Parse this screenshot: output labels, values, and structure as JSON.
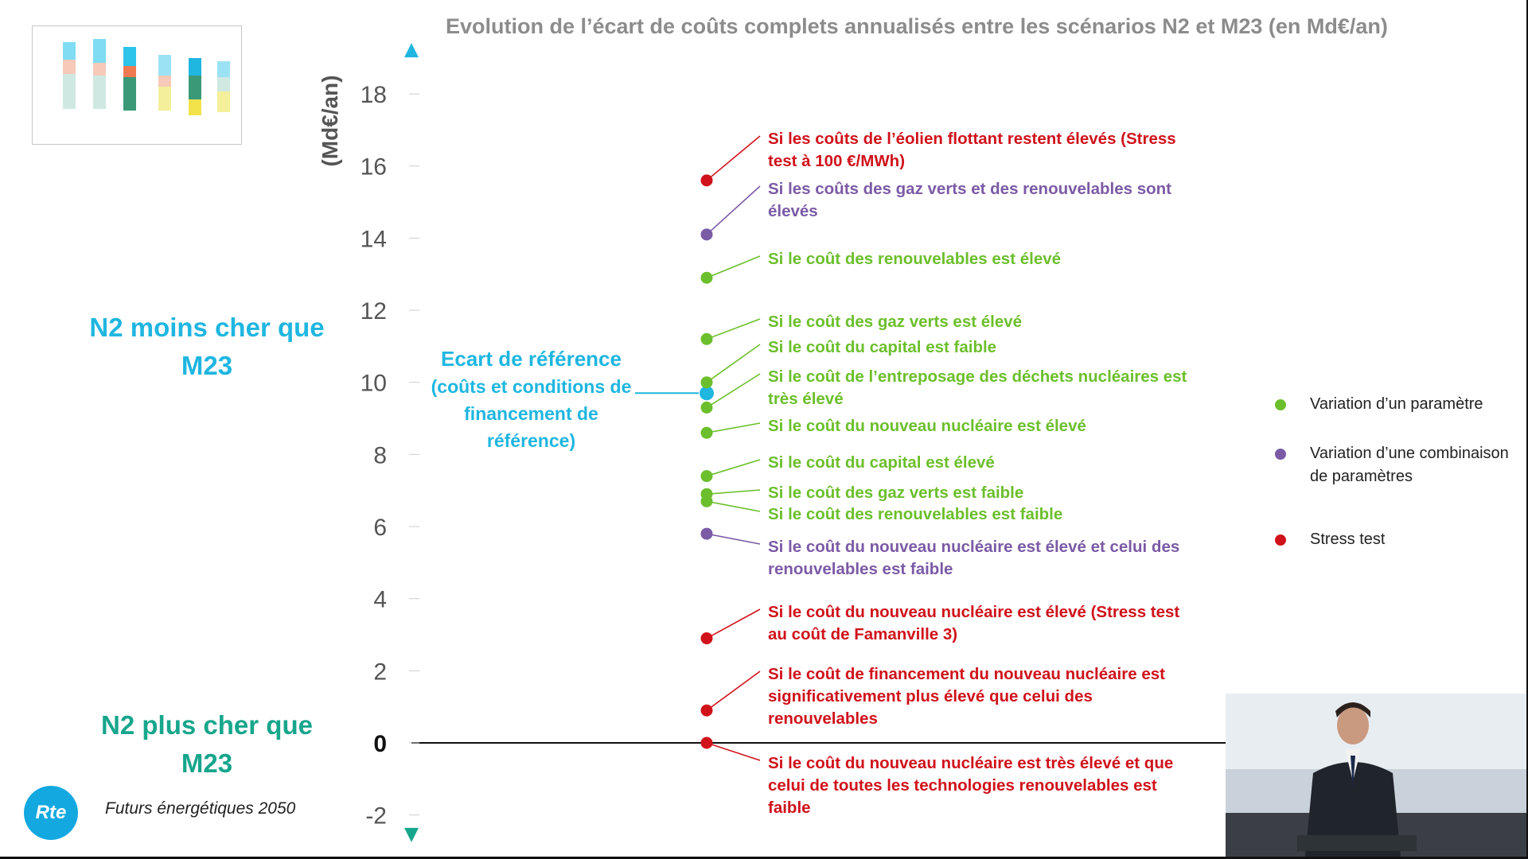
{
  "slide": {
    "title": "Evolution de l’écart de coûts complets annualisés entre les scénarios N2 et M23 (en Md€/an)",
    "top_label": "N2 moins cher que M23",
    "bottom_label": "N2 plus cher que M23",
    "reference": {
      "title": "Ecart de référence",
      "subtitle": "(coûts et conditions de financement de référence)"
    },
    "footer": "Futurs énergétiques 2050",
    "logo": "Rte",
    "colors": {
      "axis": "#1fb6e0",
      "axis_bottom": "#17a68c",
      "parameter": "#6cbf2c",
      "combination": "#7b5aa6",
      "stress": "#d0121b",
      "reference": "#1fb6e0"
    }
  },
  "legend": [
    {
      "label": "Variation d’un paramètre",
      "color": "#6cbf2c"
    },
    {
      "label": "Variation d’une combinaison de paramètres",
      "color": "#7b5aa6"
    },
    {
      "label": "Stress test",
      "color": "#d0121b"
    }
  ],
  "chart_data": {
    "type": "scatter",
    "title": "Evolution de l’écart de coûts complets annualisés entre les scénarios N2 et M23 (en Md€/an)",
    "ylabel": "(Md€/an)",
    "ylim": [
      -2.8,
      19.5
    ],
    "yticks": [
      -2,
      0,
      2,
      4,
      6,
      8,
      10,
      12,
      14,
      16,
      18
    ],
    "reference_value": 9.7,
    "points": [
      {
        "y": 15.6,
        "kind": "stress",
        "label": [
          "Si les coûts de l’éolien flottant restent élevés (Stress",
          "test à 100 €/MWh)"
        ]
      },
      {
        "y": 14.1,
        "kind": "combination",
        "label": [
          "Si les coûts des gaz verts et des renouvelables sont",
          "élevés"
        ]
      },
      {
        "y": 12.9,
        "kind": "parameter",
        "label": [
          "Si le coût des renouvelables est élevé"
        ]
      },
      {
        "y": 11.2,
        "kind": "parameter",
        "label": [
          "Si le coût des gaz verts est élevé"
        ]
      },
      {
        "y": 10.0,
        "kind": "parameter",
        "label": [
          "Si le coût du capital est faible"
        ]
      },
      {
        "y": 9.3,
        "kind": "parameter",
        "label": [
          "Si le coût de l’entreposage des déchets nucléaires est",
          "très élevé"
        ]
      },
      {
        "y": 8.6,
        "kind": "parameter",
        "label": [
          "Si le coût du nouveau nucléaire est élevé"
        ]
      },
      {
        "y": 7.4,
        "kind": "parameter",
        "label": [
          "Si le coût du capital est élevé"
        ]
      },
      {
        "y": 6.9,
        "kind": "parameter",
        "label": [
          "Si le coût des gaz verts est faible"
        ]
      },
      {
        "y": 6.7,
        "kind": "parameter",
        "label": [
          "Si le coût des renouvelables est faible"
        ]
      },
      {
        "y": 5.8,
        "kind": "combination",
        "label": [
          "Si le coût du nouveau nucléaire est élevé et celui des",
          "renouvelables est faible"
        ]
      },
      {
        "y": 2.9,
        "kind": "stress",
        "label": [
          "Si le coût du nouveau nucléaire est élevé (Stress test",
          "au coût de Famanville 3)"
        ]
      },
      {
        "y": 0.9,
        "kind": "stress",
        "label": [
          "Si le coût de financement du nouveau nucléaire est",
          "significativement plus élevé que celui des",
          "renouvelables"
        ]
      },
      {
        "y": 0.0,
        "kind": "stress",
        "label": [
          "Si le coût du nouveau nucléaire est très élevé et que",
          "celui de toutes les technologies renouvelables est",
          "faible"
        ]
      }
    ]
  }
}
